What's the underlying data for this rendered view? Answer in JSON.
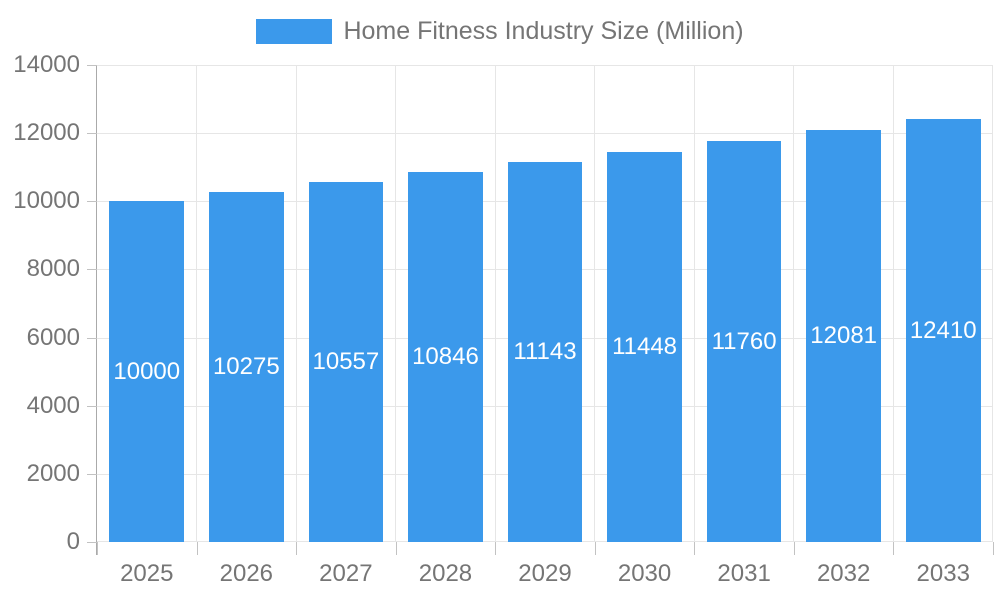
{
  "legend": {
    "items": [
      {
        "label": "Home Fitness Industry Size (Million)",
        "color": "#3B99EB"
      }
    ]
  },
  "chart_data": {
    "type": "bar",
    "title": "",
    "categories": [
      "2025",
      "2026",
      "2027",
      "2028",
      "2029",
      "2030",
      "2031",
      "2032",
      "2033"
    ],
    "series": [
      {
        "name": "Home Fitness Industry Size (Million)",
        "color": "#3B99EB",
        "values": [
          10000,
          10275,
          10557,
          10846,
          11143,
          11448,
          11760,
          12081,
          12410
        ]
      }
    ],
    "value_labels": {
      "position": "inside-middle",
      "color": "#ffffff"
    },
    "xlabel": "",
    "ylabel": "",
    "ylim": [
      0,
      14000
    ],
    "y_ticks": [
      0,
      2000,
      4000,
      6000,
      8000,
      10000,
      12000,
      14000
    ],
    "grid": true,
    "legend_position": "top",
    "colors": {
      "axis_text": "#757575",
      "gridline": "#e6e6e6",
      "axis_line": "#aaaaaa",
      "tick": "#c2c2c2",
      "background": "#ffffff"
    }
  }
}
